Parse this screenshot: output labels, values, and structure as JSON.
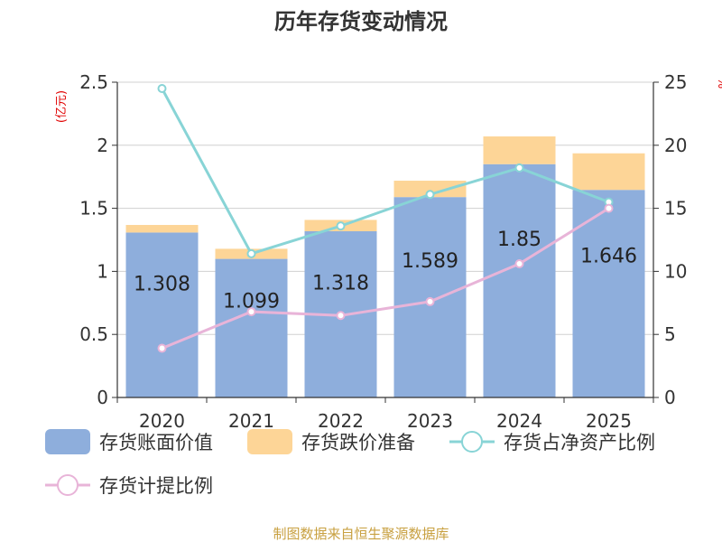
{
  "chart_data": {
    "type": "bar",
    "title": "历年存货变动情况",
    "categories": [
      "2020",
      "2021",
      "2022",
      "2023",
      "2024",
      "2025"
    ],
    "y_left_unit": "(亿元)",
    "y_left_range": [
      0,
      2.5
    ],
    "y_left_ticks": [
      "0",
      "0.5",
      "1",
      "1.5",
      "2",
      "2.5"
    ],
    "y_right_unit": "%",
    "y_right_range": [
      0,
      25
    ],
    "y_right_ticks": [
      "0",
      "5",
      "10",
      "15",
      "20",
      "25"
    ],
    "grid": true,
    "legend_position": "bottom",
    "series": [
      {
        "name": "存货账面价值",
        "kind": "bar",
        "axis": "left",
        "color": "#8eaedc",
        "values": [
          1.308,
          1.099,
          1.318,
          1.589,
          1.85,
          1.646
        ],
        "labels": [
          "1.308",
          "1.099",
          "1.318",
          "1.589",
          "1.85",
          "1.646"
        ]
      },
      {
        "name": "存货跌价准备",
        "kind": "bar",
        "axis": "left",
        "color": "#fdd597",
        "values": [
          0.06,
          0.08,
          0.09,
          0.13,
          0.22,
          0.29
        ]
      },
      {
        "name": "存货占净资产比例",
        "kind": "line",
        "axis": "right",
        "color": "#88d4d6",
        "values": [
          24.5,
          11.4,
          13.6,
          16.1,
          18.2,
          15.5
        ]
      },
      {
        "name": "存货计提比例",
        "kind": "line",
        "axis": "right",
        "color": "#e8b4d8",
        "values": [
          3.9,
          6.8,
          6.5,
          7.6,
          10.6,
          15.0
        ]
      }
    ]
  },
  "source_note": "制图数据来自恒生聚源数据库"
}
